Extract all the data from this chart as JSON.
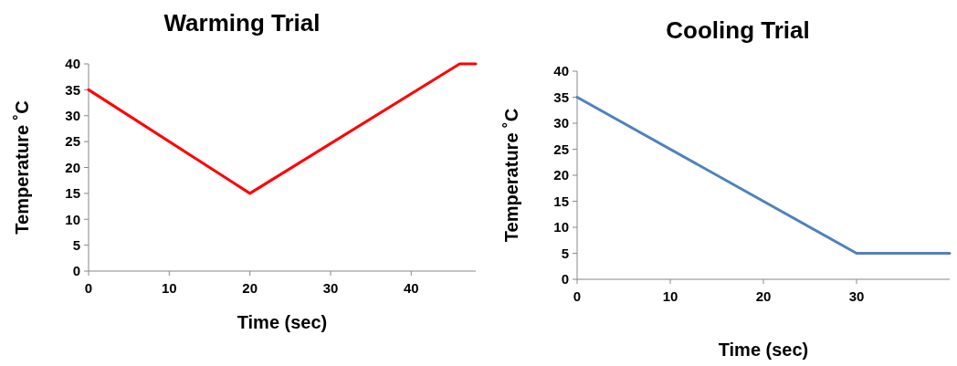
{
  "chart_data": [
    {
      "type": "line",
      "title": "Warming Trial",
      "xlabel": "Time (sec)",
      "ylabel": "Temperature ˚C",
      "x": [
        0,
        20,
        46,
        48
      ],
      "series": [
        {
          "color": "#ff0000",
          "values": [
            35,
            15,
            40,
            40
          ]
        }
      ],
      "xlim": [
        0,
        48
      ],
      "xticks": [
        0,
        10,
        20,
        30,
        40
      ],
      "ylim": [
        0,
        40
      ],
      "yticks": [
        0,
        5,
        10,
        15,
        20,
        25,
        30,
        35,
        40
      ]
    },
    {
      "type": "line",
      "title": "Cooling Trial",
      "xlabel": "Time (sec)",
      "ylabel": "Temperature ˚C",
      "x": [
        0,
        30,
        40
      ],
      "series": [
        {
          "color": "#4f81bd",
          "values": [
            35,
            5,
            5
          ]
        }
      ],
      "xlim": [
        0,
        40
      ],
      "xticks": [
        0,
        10,
        20,
        30
      ],
      "ylim": [
        0,
        40
      ],
      "yticks": [
        0,
        5,
        10,
        15,
        20,
        25,
        30,
        35,
        40
      ]
    }
  ]
}
